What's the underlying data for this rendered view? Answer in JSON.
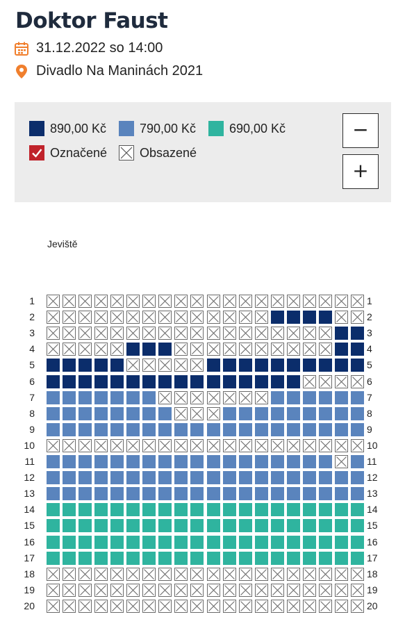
{
  "event": {
    "title": "Doktor Faust",
    "datetime": "31.12.2022 so 14:00",
    "venue": "Divadlo Na Maninách 2021",
    "accent_color": "#f07f2d"
  },
  "legend": {
    "prices": [
      {
        "label": "890,00 Kč",
        "color": "#0b2d6b"
      },
      {
        "label": "790,00 Kč",
        "color": "#5a84bd"
      },
      {
        "label": "690,00 Kč",
        "color": "#2fb49f"
      }
    ],
    "selected_label": "Označené",
    "selected_color": "#c0232b",
    "occupied_label": "Obsazené"
  },
  "zoom": {
    "out_label": "−",
    "in_label": "+"
  },
  "stage_label": "Jeviště",
  "seat_map": {
    "columns": 20,
    "legend_codes": {
      "A": "890,00 Kč",
      "B": "790,00 Kč",
      "C": "690,00 Kč",
      "X": "Obsazené"
    },
    "rows": [
      {
        "label": "1",
        "seats": "XXXXXXXXXXXXXXXXXXXX"
      },
      {
        "label": "2",
        "seats": "XXXXXXXXXXXXXXAAAAXX"
      },
      {
        "label": "3",
        "seats": "XXXXXXXXXXXXXXXXXXAA"
      },
      {
        "label": "4",
        "seats": "XXXXXAAAXXXXXXXXXXAA"
      },
      {
        "label": "5",
        "seats": "AAAAAXXXXXAAAAAAAAAA"
      },
      {
        "label": "6",
        "seats": "AAAAAAAAAAAAAAAAXXXX"
      },
      {
        "label": "7",
        "seats": "BBBBBBBXXXXXXXBBBBBB"
      },
      {
        "label": "8",
        "seats": "BBBBBBBBXXXBBBBBBBBB"
      },
      {
        "label": "9",
        "seats": "BBBBBBBBBBBBBBBBBBBB"
      },
      {
        "label": "10",
        "seats": "XXXXXXXXXXXXXXXXXXXX"
      },
      {
        "label": "11",
        "seats": "BBBBBBBBBBBBBBBBBBXB"
      },
      {
        "label": "12",
        "seats": "BBBBBBBBBBBBBBBBBBBB"
      },
      {
        "label": "13",
        "seats": "BBBBBBBBBBBBBBBBBBBB"
      },
      {
        "label": "14",
        "seats": "CCCCCCCCCCCCCCCCCCCC"
      },
      {
        "label": "15",
        "seats": "CCCCCCCCCCCCCCCCCCCC"
      },
      {
        "label": "16",
        "seats": "CCCCCCCCCCCCCCCCCCCC"
      },
      {
        "label": "17",
        "seats": "CCCCCCCCCCCCCCCCCCCC"
      },
      {
        "label": "18",
        "seats": "XXXXXXXXXXXXXXXXXXXX"
      },
      {
        "label": "19",
        "seats": "XXXXXXXXXXXXXXXXXXXX"
      },
      {
        "label": "20",
        "seats": "XXXXXXXXXXXXXXXXXXXX"
      }
    ]
  }
}
